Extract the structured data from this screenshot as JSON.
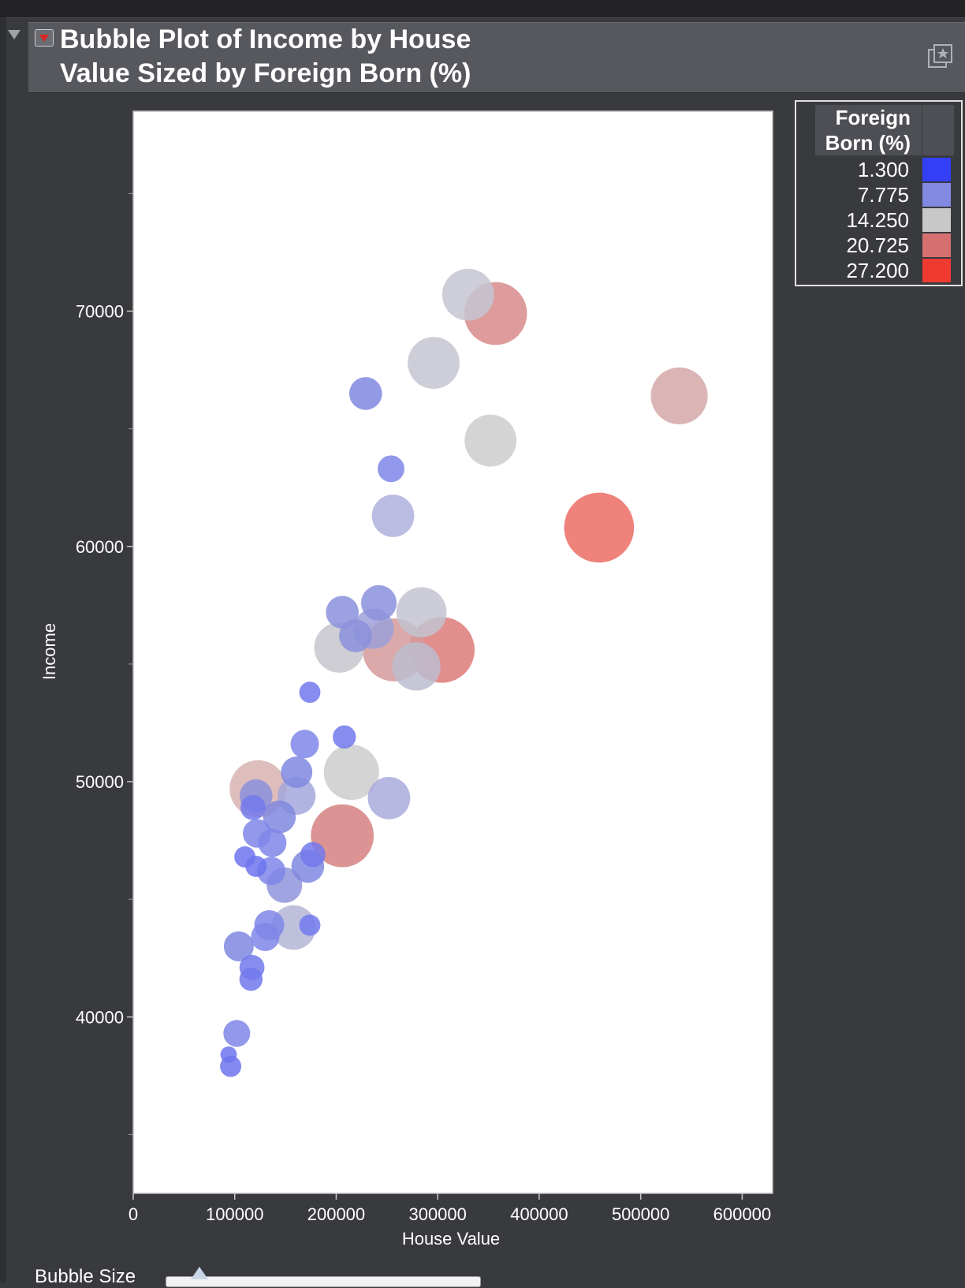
{
  "report": {
    "title_line1": "Bubble Plot of Income by House",
    "title_line2": "Value Sized by Foreign Born (%)"
  },
  "controls": {
    "bubble_size_label": "Bubble Size"
  },
  "legend": {
    "title_line1": "Foreign",
    "title_line2": "Born (%)",
    "items": [
      {
        "label": "1.300",
        "color": "#3340f5"
      },
      {
        "label": "7.775",
        "color": "#8189e0"
      },
      {
        "label": "14.250",
        "color": "#c8c8c8"
      },
      {
        "label": "20.725",
        "color": "#d67070"
      },
      {
        "label": "27.200",
        "color": "#ee3a30"
      }
    ]
  },
  "chart_data": {
    "type": "scatter",
    "title": "Bubble Plot of Income by House Value Sized by Foreign Born (%)",
    "xlabel": "House Value",
    "ylabel": "Income",
    "xlim": [
      0,
      630000
    ],
    "ylim": [
      32500,
      78500
    ],
    "xticks": [
      0,
      100000,
      200000,
      300000,
      400000,
      500000,
      600000
    ],
    "yticks": [
      40000,
      50000,
      60000,
      70000
    ],
    "y_minor_ticks": [
      35000,
      45000,
      55000,
      65000,
      75000
    ],
    "size_variable": "Foreign Born (%)",
    "color_variable": "Foreign Born (%)",
    "points": [
      {
        "x": 330000,
        "y": 70700,
        "size": 15,
        "color": "#c5c6d2"
      },
      {
        "x": 357000,
        "y": 69900,
        "size": 22,
        "color": "#d88a8a"
      },
      {
        "x": 296000,
        "y": 67800,
        "size": 15,
        "color": "#c5c6d2"
      },
      {
        "x": 229000,
        "y": 66500,
        "size": 6,
        "color": "#8088e0"
      },
      {
        "x": 538000,
        "y": 66400,
        "size": 18,
        "color": "#d5a8a8"
      },
      {
        "x": 352000,
        "y": 64500,
        "size": 15,
        "color": "#cccccc"
      },
      {
        "x": 254000,
        "y": 63300,
        "size": 4,
        "color": "#7f86e8"
      },
      {
        "x": 256000,
        "y": 61300,
        "size": 10,
        "color": "#aeb0dc"
      },
      {
        "x": 459000,
        "y": 60800,
        "size": 27.2,
        "color": "#ec6c64"
      },
      {
        "x": 242000,
        "y": 57600,
        "size": 7,
        "color": "#8b91dc"
      },
      {
        "x": 206000,
        "y": 57200,
        "size": 6,
        "color": "#8b91dc"
      },
      {
        "x": 284000,
        "y": 57200,
        "size": 14,
        "color": "#c2c3d0"
      },
      {
        "x": 237000,
        "y": 56500,
        "size": 9,
        "color": "#9ca0d8"
      },
      {
        "x": 219000,
        "y": 56200,
        "size": 6,
        "color": "#8b91dc"
      },
      {
        "x": 203000,
        "y": 55700,
        "size": 14,
        "color": "#c5c6cc"
      },
      {
        "x": 257000,
        "y": 55600,
        "size": 22,
        "color": "#d59a9a"
      },
      {
        "x": 304000,
        "y": 55600,
        "size": 24,
        "color": "#dd7a78"
      },
      {
        "x": 279000,
        "y": 54900,
        "size": 13,
        "color": "#bcbdcf"
      },
      {
        "x": 174000,
        "y": 53800,
        "size": 2.5,
        "color": "#7279ec"
      },
      {
        "x": 208000,
        "y": 51900,
        "size": 3,
        "color": "#7279ec"
      },
      {
        "x": 169000,
        "y": 51600,
        "size": 4.5,
        "color": "#7f86e8"
      },
      {
        "x": 161000,
        "y": 50400,
        "size": 5.5,
        "color": "#8088e0"
      },
      {
        "x": 215000,
        "y": 50400,
        "size": 17,
        "color": "#cccccc"
      },
      {
        "x": 123000,
        "y": 49700,
        "size": 18,
        "color": "#d8b2b2"
      },
      {
        "x": 161000,
        "y": 49400,
        "size": 8,
        "color": "#a3a7da"
      },
      {
        "x": 121000,
        "y": 49400,
        "size": 6,
        "color": "#8b91dc"
      },
      {
        "x": 252000,
        "y": 49300,
        "size": 10,
        "color": "#a9acdc"
      },
      {
        "x": 118000,
        "y": 48900,
        "size": 3.5,
        "color": "#7279ec"
      },
      {
        "x": 144000,
        "y": 48500,
        "size": 6,
        "color": "#8088e0"
      },
      {
        "x": 206000,
        "y": 47700,
        "size": 22,
        "color": "#d68080"
      },
      {
        "x": 122000,
        "y": 47800,
        "size": 4.5,
        "color": "#7f86e8"
      },
      {
        "x": 137000,
        "y": 47400,
        "size": 4.5,
        "color": "#7f86e8"
      },
      {
        "x": 110000,
        "y": 46800,
        "size": 2.5,
        "color": "#6d74ee"
      },
      {
        "x": 177000,
        "y": 46900,
        "size": 3.5,
        "color": "#7279ec"
      },
      {
        "x": 121000,
        "y": 46400,
        "size": 2.5,
        "color": "#6d74ee"
      },
      {
        "x": 136000,
        "y": 46200,
        "size": 4.5,
        "color": "#7f86e8"
      },
      {
        "x": 172000,
        "y": 46400,
        "size": 6,
        "color": "#8088e0"
      },
      {
        "x": 149000,
        "y": 45600,
        "size": 7,
        "color": "#8f95dc"
      },
      {
        "x": 134000,
        "y": 43900,
        "size": 5,
        "color": "#7f86e8"
      },
      {
        "x": 158000,
        "y": 43800,
        "size": 11,
        "color": "#b3b5d6"
      },
      {
        "x": 174000,
        "y": 43900,
        "size": 2.5,
        "color": "#7279ec"
      },
      {
        "x": 130000,
        "y": 43400,
        "size": 4.5,
        "color": "#7f86e8"
      },
      {
        "x": 104000,
        "y": 43000,
        "size": 5,
        "color": "#8088e0"
      },
      {
        "x": 117000,
        "y": 42100,
        "size": 3.5,
        "color": "#7279ec"
      },
      {
        "x": 116000,
        "y": 41600,
        "size": 3,
        "color": "#7279ec"
      },
      {
        "x": 102000,
        "y": 39300,
        "size": 4,
        "color": "#7f86e8"
      },
      {
        "x": 94000,
        "y": 38400,
        "size": 1.5,
        "color": "#6d74ee"
      },
      {
        "x": 96000,
        "y": 37900,
        "size": 2.5,
        "color": "#6d74ee"
      }
    ]
  }
}
